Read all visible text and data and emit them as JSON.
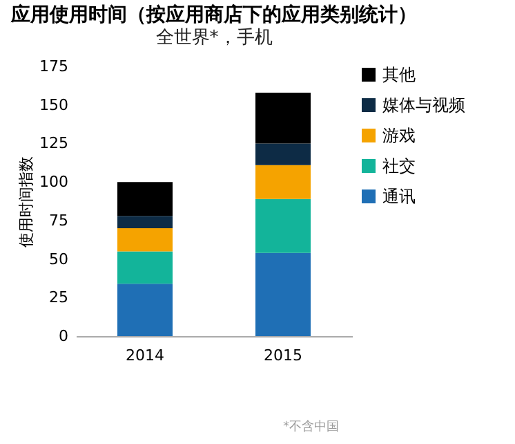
{
  "chart_data": {
    "type": "bar",
    "title": "应用使用时间（按应用商店下的应用类别统计）",
    "subtitle": "全世界*，手机",
    "ylabel": "使用时间指数",
    "categories": [
      "2014",
      "2015"
    ],
    "stacked": true,
    "series": [
      {
        "name": "通讯",
        "color": "#1f6fb5",
        "values": [
          34,
          54
        ]
      },
      {
        "name": "社交",
        "color": "#13b49a",
        "values": [
          21,
          35
        ]
      },
      {
        "name": "游戏",
        "color": "#f5a300",
        "values": [
          15,
          22
        ]
      },
      {
        "name": "媒体与视频",
        "color": "#0d2b45",
        "values": [
          8,
          14
        ]
      },
      {
        "name": "其他",
        "color": "#000000",
        "values": [
          22,
          33
        ]
      }
    ],
    "ylim": [
      0,
      175
    ],
    "yticks": [
      0,
      25,
      50,
      75,
      100,
      125,
      150,
      175
    ],
    "grid": false,
    "legend": "right",
    "annotations": [
      "*不含中国"
    ]
  }
}
